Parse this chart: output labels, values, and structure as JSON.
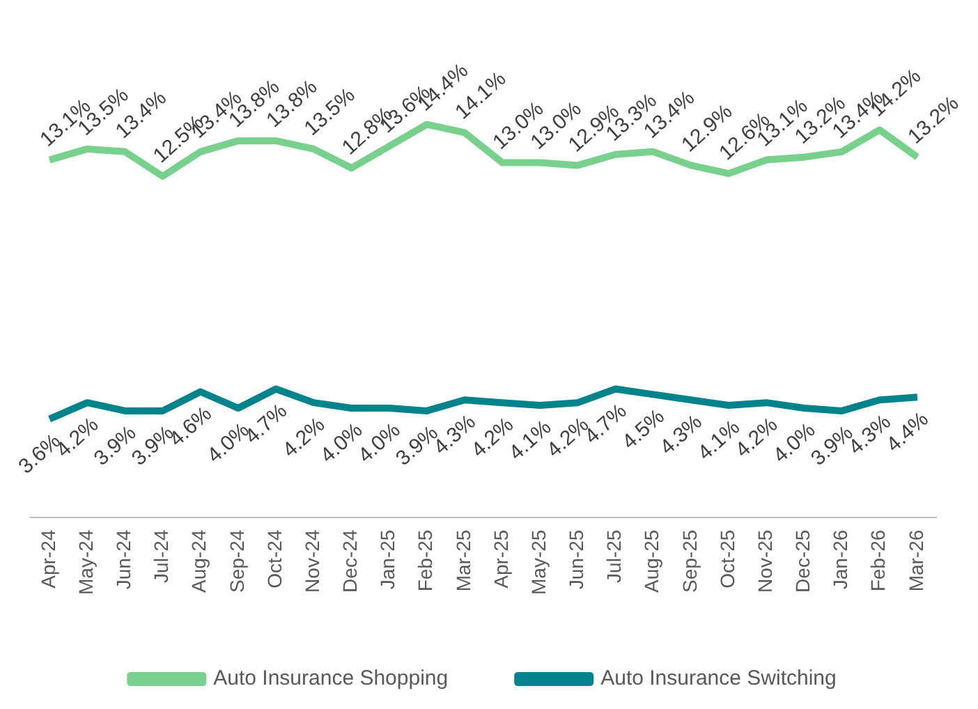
{
  "chart_data": {
    "type": "line",
    "categories": [
      "Apr-24",
      "May-24",
      "Jun-24",
      "Jul-24",
      "Aug-24",
      "Sep-24",
      "Oct-24",
      "Nov-24",
      "Dec-24",
      "Jan-25",
      "Feb-25",
      "Mar-25",
      "Apr-25",
      "May-25",
      "Jun-25",
      "Jul-25",
      "Aug-25",
      "Sep-25",
      "Oct-25",
      "Nov-25",
      "Dec-25",
      "Jan-26",
      "Feb-26",
      "Mar-26"
    ],
    "tick_labels": "x",
    "legend": "bottom",
    "grid": false,
    "marker": "none",
    "line_style": "solid",
    "series": [
      {
        "name": "Auto Insurance Shopping",
        "color": "#77d18d",
        "values": [
          13.1,
          13.5,
          13.4,
          12.5,
          13.4,
          13.8,
          13.8,
          13.5,
          12.8,
          13.6,
          14.4,
          14.1,
          13.0,
          13.0,
          12.9,
          13.3,
          13.4,
          12.9,
          12.6,
          13.1,
          13.2,
          13.4,
          14.2,
          13.2
        ],
        "value_labels": [
          "13.1%",
          "13.5%",
          "13.4%",
          "12.5%",
          "13.4%",
          "13.8%",
          "13.8%",
          "13.5%",
          "12.8%",
          "13.6%",
          "14.4%",
          "14.1%",
          "13.0%",
          "13.0%",
          "12.9%",
          "13.3%",
          "13.4%",
          "12.9%",
          "12.6%",
          "13.1%",
          "13.2%",
          "13.4%",
          "14.2%",
          "13.2%"
        ]
      },
      {
        "name": "Auto Insurance Switching",
        "color": "#00838a",
        "values": [
          3.6,
          4.2,
          3.9,
          3.9,
          4.6,
          4.0,
          4.7,
          4.2,
          4.0,
          4.0,
          3.9,
          4.3,
          4.2,
          4.1,
          4.2,
          4.7,
          4.5,
          4.3,
          4.1,
          4.2,
          4.0,
          3.9,
          4.3,
          4.4
        ],
        "value_labels": [
          "3.6%",
          "4.2%",
          "3.9%",
          "3.9%",
          "4.6%",
          "4.0%",
          "4.7%",
          "4.2%",
          "4.0%",
          "4.0%",
          "3.9%",
          "4.3%",
          "4.2%",
          "4.1%",
          "4.2%",
          "4.7%",
          "4.5%",
          "4.3%",
          "4.1%",
          "4.2%",
          "4.0%",
          "3.9%",
          "4.3%",
          "4.4%"
        ]
      }
    ]
  }
}
